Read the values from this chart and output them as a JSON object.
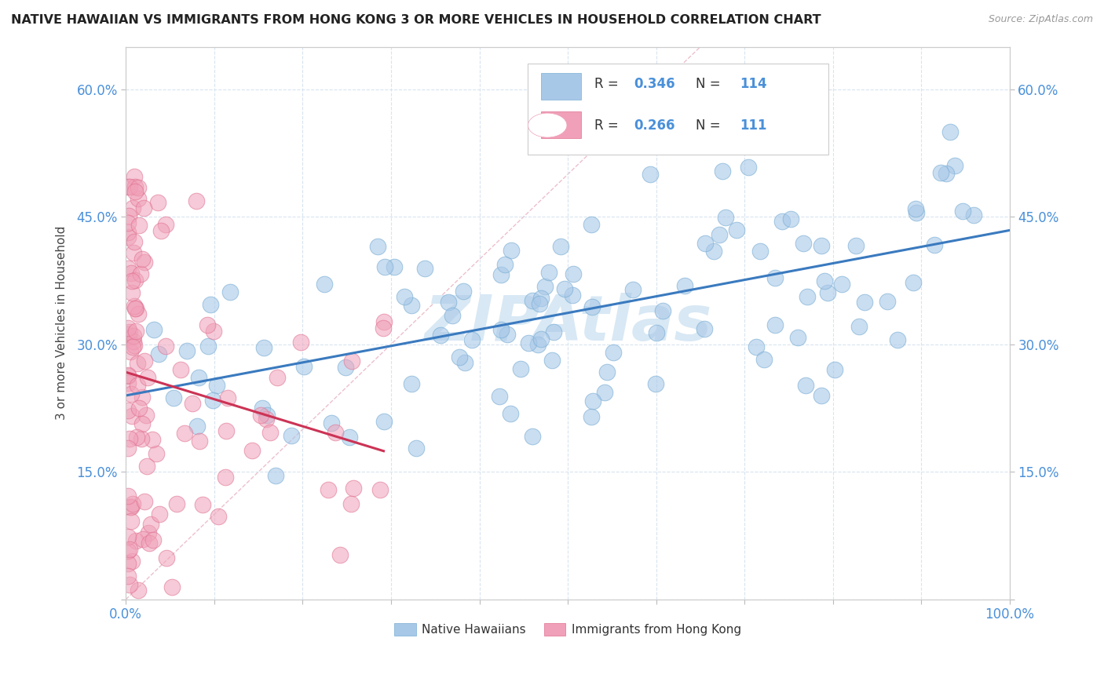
{
  "title": "NATIVE HAWAIIAN VS IMMIGRANTS FROM HONG KONG 3 OR MORE VEHICLES IN HOUSEHOLD CORRELATION CHART",
  "source_text": "Source: ZipAtlas.com",
  "ylabel": "3 or more Vehicles in Household",
  "xlim": [
    0.0,
    1.0
  ],
  "ylim": [
    0.0,
    0.65
  ],
  "xticks": [
    0.0,
    0.1,
    0.2,
    0.3,
    0.4,
    0.5,
    0.6,
    0.7,
    0.8,
    0.9,
    1.0
  ],
  "yticks": [
    0.0,
    0.15,
    0.3,
    0.45,
    0.6
  ],
  "blue_color": "#a8c8e8",
  "blue_edge_color": "#7aaed4",
  "pink_color": "#f0a0b8",
  "pink_edge_color": "#e07090",
  "blue_line_color": "#3a7abf",
  "pink_line_color": "#cc3355",
  "diagonal_color": "#e8b0c0",
  "text_color": "#4a90d9",
  "watermark_color": "#d8e8f4",
  "legend_R1": "0.346",
  "legend_N1": "114",
  "legend_R2": "0.266",
  "legend_N2": "111",
  "title_color": "#222222",
  "ylabel_color": "#444444",
  "source_color": "#999999"
}
